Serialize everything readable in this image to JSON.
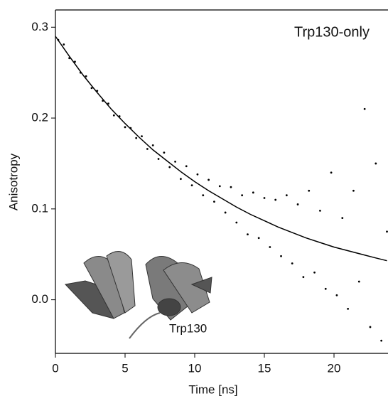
{
  "chart_data": {
    "type": "scatter",
    "annotation": "Trp130-only",
    "inset_label": "Trp130",
    "x_label": "Time  [ns]",
    "y_label": "Anisotropy",
    "xlim": [
      0,
      23.8
    ],
    "ylim": [
      -0.059,
      0.319
    ],
    "xticks": [
      0,
      5,
      10,
      15,
      20
    ],
    "yticks": [
      {
        "value": 0,
        "label": "0.0"
      },
      0.1,
      0.2,
      0.3
    ],
    "series": [
      {
        "style": "points",
        "color": "#000000",
        "x": [
          0.2,
          0.6,
          1.0,
          1.4,
          1.8,
          2.2,
          2.6,
          3.0,
          3.4,
          3.8,
          4.2,
          4.6,
          5.0,
          5.4,
          5.8,
          6.2,
          6.6,
          7.0,
          7.4,
          7.8,
          8.2,
          8.6,
          9.0,
          9.4,
          9.8,
          10.2,
          10.6,
          11.0,
          11.4,
          11.8,
          12.2,
          12.6,
          13.0,
          13.4,
          13.8,
          14.2,
          14.6,
          15.0,
          15.4,
          15.8,
          16.2,
          16.6,
          17.0,
          17.4,
          17.8,
          18.2,
          18.6,
          19.0,
          19.4,
          19.8,
          20.2,
          20.6,
          21.0,
          21.4,
          21.8,
          22.2,
          22.6,
          23.0,
          23.4,
          23.8
        ],
        "values": [
          0.286,
          0.281,
          0.266,
          0.262,
          0.25,
          0.246,
          0.233,
          0.23,
          0.219,
          0.216,
          0.203,
          0.202,
          0.19,
          0.189,
          0.178,
          0.18,
          0.166,
          0.17,
          0.155,
          0.162,
          0.146,
          0.152,
          0.133,
          0.147,
          0.126,
          0.138,
          0.115,
          0.132,
          0.108,
          0.125,
          0.096,
          0.124,
          0.085,
          0.115,
          0.072,
          0.118,
          0.068,
          0.112,
          0.058,
          0.11,
          0.048,
          0.115,
          0.04,
          0.105,
          0.025,
          0.12,
          0.03,
          0.098,
          0.012,
          0.14,
          0.005,
          0.09,
          -0.01,
          0.12,
          0.02,
          0.21,
          -0.03,
          0.15,
          -0.045,
          0.075
        ]
      },
      {
        "style": "line",
        "color": "#000000",
        "x": [
          0,
          1,
          2,
          3,
          4,
          5,
          6,
          7,
          8,
          9,
          10,
          11,
          12,
          13,
          14,
          15,
          16,
          17,
          18,
          19,
          20,
          21,
          22,
          23,
          23.8
        ],
        "values": [
          0.29,
          0.268,
          0.247,
          0.228,
          0.21,
          0.194,
          0.179,
          0.165,
          0.153,
          0.141,
          0.13,
          0.12,
          0.111,
          0.102,
          0.094,
          0.087,
          0.08,
          0.074,
          0.068,
          0.063,
          0.058,
          0.054,
          0.05,
          0.046,
          0.043
        ]
      }
    ]
  }
}
